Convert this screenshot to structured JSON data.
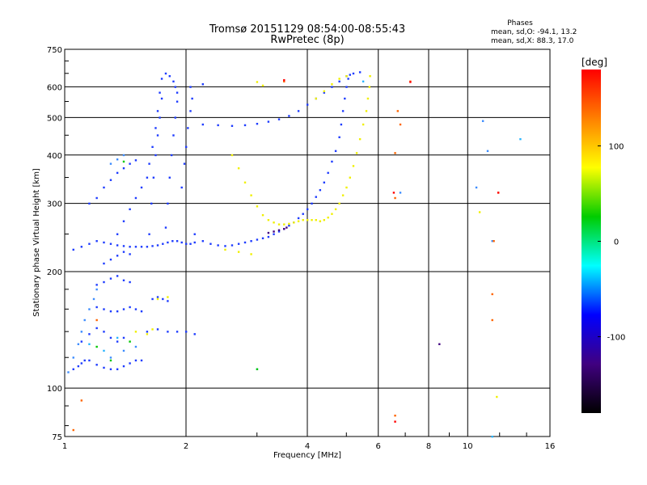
{
  "chart_data": {
    "type": "scatter",
    "title": "Tromsø 20151129 08:54:00-08:55:43",
    "subtitle": "RwPretec (8p)",
    "xlabel": "Frequency [MHz]",
    "ylabel": "Stationary phase Virtual Height [km]",
    "x_scale": "log",
    "y_scale": "log",
    "xlim": [
      1,
      16
    ],
    "ylim": [
      75,
      750
    ],
    "x_ticks": [
      1,
      2,
      4,
      6,
      8,
      10,
      16
    ],
    "y_ticks": [
      75,
      100,
      200,
      300,
      400,
      500,
      600,
      750
    ],
    "grid": true,
    "stats": {
      "heading": "Phases",
      "o_line": "mean, sd,O: -94.1, 13.2",
      "x_line": "mean, sd,X:  88.3, 17.0"
    },
    "colorbar": {
      "label": "[deg]",
      "range": [
        -180,
        180
      ],
      "ticks": [
        100,
        0,
        -100
      ],
      "colors": [
        "#ff0000",
        "#ff8000",
        "#ffff00",
        "#00cc00",
        "#00ffff",
        "#0000ff",
        "#400080",
        "#000000"
      ]
    },
    "series": [
      {
        "color": "#1e3cff",
        "points": [
          [
            1.05,
            112
          ],
          [
            1.08,
            114
          ],
          [
            1.1,
            116
          ],
          [
            1.12,
            118
          ],
          [
            1.15,
            118
          ],
          [
            1.2,
            115
          ],
          [
            1.25,
            113
          ],
          [
            1.3,
            112
          ],
          [
            1.35,
            112
          ],
          [
            1.4,
            114
          ],
          [
            1.45,
            116
          ],
          [
            1.5,
            118
          ],
          [
            1.55,
            118
          ],
          [
            1.1,
            132
          ],
          [
            1.15,
            138
          ],
          [
            1.2,
            143
          ],
          [
            1.25,
            140
          ],
          [
            1.3,
            135
          ],
          [
            1.35,
            132
          ],
          [
            1.4,
            135
          ],
          [
            1.2,
            162
          ],
          [
            1.25,
            160
          ],
          [
            1.3,
            158
          ],
          [
            1.35,
            158
          ],
          [
            1.4,
            160
          ],
          [
            1.45,
            162
          ],
          [
            1.5,
            160
          ],
          [
            1.55,
            158
          ],
          [
            1.2,
            185
          ],
          [
            1.25,
            188
          ],
          [
            1.3,
            192
          ],
          [
            1.35,
            195
          ],
          [
            1.4,
            190
          ],
          [
            1.45,
            188
          ],
          [
            1.25,
            210
          ],
          [
            1.3,
            215
          ],
          [
            1.35,
            220
          ],
          [
            1.4,
            225
          ],
          [
            1.45,
            222
          ],
          [
            1.05,
            228
          ],
          [
            1.1,
            232
          ],
          [
            1.15,
            236
          ],
          [
            1.2,
            240
          ],
          [
            1.25,
            238
          ],
          [
            1.3,
            236
          ],
          [
            1.35,
            234
          ],
          [
            1.4,
            233
          ],
          [
            1.45,
            232
          ],
          [
            1.5,
            232
          ],
          [
            1.55,
            232
          ],
          [
            1.6,
            232
          ],
          [
            1.65,
            233
          ],
          [
            1.7,
            234
          ],
          [
            1.75,
            236
          ],
          [
            1.8,
            238
          ],
          [
            1.85,
            240
          ],
          [
            1.9,
            240
          ],
          [
            1.95,
            238
          ],
          [
            2.0,
            236
          ],
          [
            2.05,
            236
          ],
          [
            2.1,
            238
          ],
          [
            1.15,
            300
          ],
          [
            1.2,
            310
          ],
          [
            1.25,
            330
          ],
          [
            1.3,
            345
          ],
          [
            1.35,
            360
          ],
          [
            1.4,
            370
          ],
          [
            1.45,
            380
          ],
          [
            1.5,
            388
          ],
          [
            1.35,
            250
          ],
          [
            1.4,
            270
          ],
          [
            1.45,
            290
          ],
          [
            1.5,
            310
          ],
          [
            1.55,
            330
          ],
          [
            1.6,
            350
          ],
          [
            1.62,
            380
          ],
          [
            1.65,
            420
          ],
          [
            1.68,
            470
          ],
          [
            1.7,
            520
          ],
          [
            1.72,
            580
          ],
          [
            1.74,
            630
          ],
          [
            1.78,
            650
          ],
          [
            1.82,
            640
          ],
          [
            1.86,
            620
          ],
          [
            1.88,
            600
          ],
          [
            1.9,
            580
          ],
          [
            1.62,
            250
          ],
          [
            1.64,
            300
          ],
          [
            1.66,
            350
          ],
          [
            1.68,
            400
          ],
          [
            1.7,
            450
          ],
          [
            1.72,
            500
          ],
          [
            1.74,
            560
          ],
          [
            1.78,
            260
          ],
          [
            1.8,
            300
          ],
          [
            1.82,
            350
          ],
          [
            1.84,
            400
          ],
          [
            1.86,
            450
          ],
          [
            1.88,
            500
          ],
          [
            1.9,
            550
          ],
          [
            1.95,
            330
          ],
          [
            1.98,
            380
          ],
          [
            2.0,
            420
          ],
          [
            2.02,
            470
          ],
          [
            2.05,
            520
          ],
          [
            2.07,
            560
          ],
          [
            1.6,
            140
          ],
          [
            1.7,
            142
          ],
          [
            1.8,
            140
          ],
          [
            1.9,
            140
          ],
          [
            2.0,
            140
          ],
          [
            2.1,
            138
          ],
          [
            1.65,
            170
          ],
          [
            1.7,
            172
          ],
          [
            1.75,
            170
          ],
          [
            1.8,
            168
          ],
          [
            2.1,
            250
          ],
          [
            2.2,
            240
          ],
          [
            2.3,
            236
          ],
          [
            2.4,
            234
          ],
          [
            2.5,
            233
          ],
          [
            2.6,
            234
          ],
          [
            2.7,
            236
          ],
          [
            2.8,
            238
          ],
          [
            2.9,
            240
          ],
          [
            3.0,
            242
          ],
          [
            3.1,
            244
          ],
          [
            3.2,
            246
          ],
          [
            3.3,
            250
          ],
          [
            3.4,
            254
          ],
          [
            3.5,
            258
          ],
          [
            3.6,
            263
          ],
          [
            3.7,
            268
          ],
          [
            3.8,
            275
          ],
          [
            3.9,
            282
          ],
          [
            4.0,
            290
          ],
          [
            4.1,
            300
          ],
          [
            4.2,
            312
          ],
          [
            4.3,
            325
          ],
          [
            4.4,
            340
          ],
          [
            4.5,
            360
          ],
          [
            4.6,
            385
          ],
          [
            4.7,
            410
          ],
          [
            4.8,
            445
          ],
          [
            4.85,
            480
          ],
          [
            4.9,
            520
          ],
          [
            4.95,
            560
          ],
          [
            5.0,
            600
          ],
          [
            5.05,
            630
          ],
          [
            5.1,
            645
          ],
          [
            2.2,
            480
          ],
          [
            2.4,
            478
          ],
          [
            2.6,
            476
          ],
          [
            2.8,
            478
          ],
          [
            3.0,
            482
          ],
          [
            3.2,
            488
          ],
          [
            3.4,
            495
          ],
          [
            3.6,
            505
          ],
          [
            3.8,
            520
          ],
          [
            4.0,
            540
          ],
          [
            4.2,
            560
          ],
          [
            4.4,
            580
          ],
          [
            4.6,
            600
          ],
          [
            4.8,
            620
          ],
          [
            5.0,
            640
          ],
          [
            5.2,
            650
          ],
          [
            5.4,
            655
          ],
          [
            2.05,
            600
          ],
          [
            2.2,
            610
          ]
        ]
      },
      {
        "color": "#3c8cff",
        "points": [
          [
            1.02,
            110
          ],
          [
            1.05,
            120
          ],
          [
            1.08,
            130
          ],
          [
            1.1,
            140
          ],
          [
            1.12,
            150
          ],
          [
            1.15,
            160
          ],
          [
            1.18,
            170
          ],
          [
            1.2,
            180
          ],
          [
            1.3,
            120
          ],
          [
            1.4,
            125
          ],
          [
            1.5,
            128
          ],
          [
            1.3,
            380
          ],
          [
            1.35,
            390
          ],
          [
            1.4,
            400
          ],
          [
            6.8,
            320
          ],
          [
            10.5,
            330
          ],
          [
            11.5,
            240
          ],
          [
            11.2,
            410
          ],
          [
            10.9,
            490
          ]
        ]
      },
      {
        "color": "#28b4ff",
        "points": [
          [
            1.15,
            130
          ],
          [
            1.25,
            125
          ],
          [
            1.35,
            135
          ],
          [
            3.0,
            112
          ],
          [
            11.5,
            75
          ],
          [
            13.5,
            440
          ],
          [
            5.5,
            620
          ]
        ]
      },
      {
        "color": "#400080",
        "points": [
          [
            3.2,
            252
          ],
          [
            3.3,
            254
          ],
          [
            3.4,
            256
          ],
          [
            3.5,
            258
          ],
          [
            3.55,
            260
          ],
          [
            8.5,
            130
          ]
        ]
      },
      {
        "color": "#f0f000",
        "points": [
          [
            2.6,
            400
          ],
          [
            2.7,
            370
          ],
          [
            2.8,
            340
          ],
          [
            2.9,
            315
          ],
          [
            3.0,
            295
          ],
          [
            3.1,
            280
          ],
          [
            3.2,
            272
          ],
          [
            3.3,
            268
          ],
          [
            3.4,
            265
          ],
          [
            3.5,
            265
          ],
          [
            3.6,
            266
          ],
          [
            3.7,
            268
          ],
          [
            3.8,
            270
          ],
          [
            3.9,
            272
          ],
          [
            4.0,
            272
          ],
          [
            4.1,
            272
          ],
          [
            4.2,
            272
          ],
          [
            4.3,
            270
          ],
          [
            4.4,
            272
          ],
          [
            4.5,
            276
          ],
          [
            4.6,
            282
          ],
          [
            4.7,
            290
          ],
          [
            4.8,
            300
          ],
          [
            4.9,
            315
          ],
          [
            5.0,
            330
          ],
          [
            5.1,
            350
          ],
          [
            5.2,
            375
          ],
          [
            5.3,
            405
          ],
          [
            5.4,
            440
          ],
          [
            5.5,
            480
          ],
          [
            5.6,
            520
          ],
          [
            5.65,
            560
          ],
          [
            5.7,
            600
          ],
          [
            5.72,
            640
          ],
          [
            4.2,
            560
          ],
          [
            4.4,
            585
          ],
          [
            4.6,
            610
          ],
          [
            4.8,
            630
          ],
          [
            5.0,
            640
          ],
          [
            1.5,
            140
          ],
          [
            1.6,
            138
          ],
          [
            1.65,
            142
          ],
          [
            1.7,
            170
          ],
          [
            1.8,
            172
          ],
          [
            2.5,
            228
          ],
          [
            2.7,
            225
          ],
          [
            2.9,
            222
          ],
          [
            11.8,
            95
          ],
          [
            10.7,
            285
          ],
          [
            3.0,
            618
          ],
          [
            3.1,
            605
          ]
        ]
      },
      {
        "color": "#00c800",
        "points": [
          [
            1.2,
            128
          ],
          [
            1.3,
            118
          ],
          [
            1.45,
            132
          ],
          [
            1.4,
            385
          ],
          [
            3.0,
            112
          ]
        ]
      },
      {
        "color": "#ff6400",
        "points": [
          [
            1.05,
            78
          ],
          [
            1.1,
            93
          ],
          [
            3.5,
            620
          ],
          [
            6.6,
            85
          ],
          [
            7.2,
            620
          ],
          [
            6.6,
            310
          ],
          [
            6.7,
            520
          ],
          [
            6.6,
            405
          ],
          [
            11.5,
            150
          ],
          [
            11.5,
            175
          ],
          [
            11.9,
            320
          ],
          [
            11.6,
            240
          ],
          [
            6.8,
            480
          ],
          [
            1.2,
            150
          ]
        ]
      },
      {
        "color": "#ff0000",
        "points": [
          [
            11.9,
            320
          ],
          [
            6.55,
            320
          ],
          [
            7.2,
            618
          ],
          [
            3.5,
            625
          ],
          [
            6.6,
            82
          ]
        ]
      }
    ]
  }
}
